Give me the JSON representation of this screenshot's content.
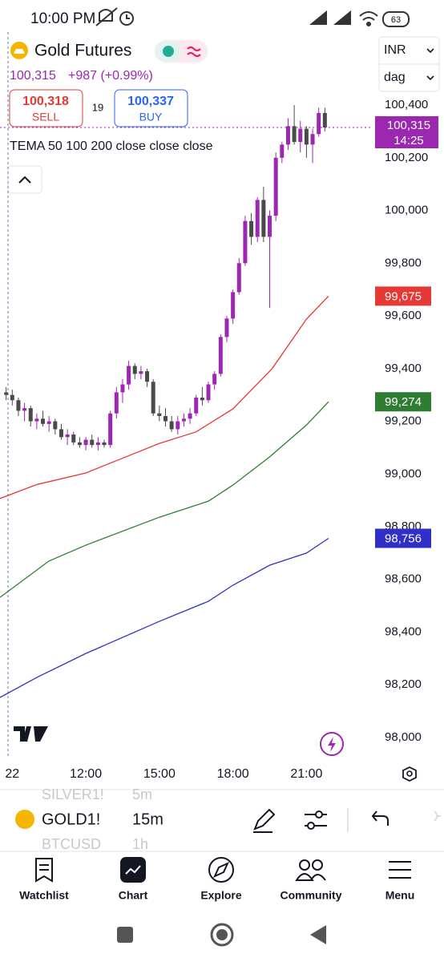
{
  "status_bar": {
    "time": "10:00 PM",
    "battery": "63"
  },
  "header": {
    "symbol_name": "Gold Futures",
    "price": "100,315",
    "change": "+987 (+0.99%)",
    "sell_price": "100,318",
    "sell_label": "SELL",
    "spread": "19",
    "buy_price": "100,337",
    "buy_label": "BUY",
    "currency": "INR",
    "interval": "dag"
  },
  "indicator_label": "TEMA 50 100 200 close close close",
  "chart_data": {
    "type": "candlestick",
    "up_color": "#9c27b0",
    "down_color": "#4a4a4a",
    "grid": false,
    "xlim": [
      8.5,
      23.7
    ],
    "ylim": [
      97924,
      100677
    ],
    "xticks": [
      {
        "value": 9,
        "label": "22"
      },
      {
        "value": 12,
        "label": "12:00"
      },
      {
        "value": 15,
        "label": "15:00"
      },
      {
        "value": 18,
        "label": "18:00"
      },
      {
        "value": 21,
        "label": "21:00"
      }
    ],
    "yticks": [
      {
        "value": 98000,
        "label": "98,000"
      },
      {
        "value": 98200,
        "label": "98,200"
      },
      {
        "value": 98400,
        "label": "98,400"
      },
      {
        "value": 98600,
        "label": "98,600"
      },
      {
        "value": 98800,
        "label": "98,800"
      },
      {
        "value": 99000,
        "label": "99,000"
      },
      {
        "value": 99200,
        "label": "99,200"
      },
      {
        "value": 99400,
        "label": "99,400"
      },
      {
        "value": 99600,
        "label": "99,600"
      },
      {
        "value": 99800,
        "label": "99,800"
      },
      {
        "value": 100000,
        "label": "100,000"
      },
      {
        "value": 100200,
        "label": "100,200"
      },
      {
        "value": 100400,
        "label": "100,400"
      }
    ],
    "last_price": 100315,
    "last_price_label": "100,315",
    "countdown": "14:25",
    "last_price_color": "#9c27b0",
    "candles": [
      {
        "x": 8.75,
        "o": 99310,
        "h": 99330,
        "l": 99280,
        "c": 99300
      },
      {
        "x": 9,
        "o": 99300,
        "h": 99320,
        "l": 99260,
        "c": 99280
      },
      {
        "x": 9.25,
        "o": 99280,
        "h": 99290,
        "l": 99220,
        "c": 99240
      },
      {
        "x": 9.5,
        "o": 99240,
        "h": 99270,
        "l": 99200,
        "c": 99250
      },
      {
        "x": 9.75,
        "o": 99250,
        "h": 99260,
        "l": 99180,
        "c": 99200
      },
      {
        "x": 10,
        "o": 99200,
        "h": 99230,
        "l": 99170,
        "c": 99210
      },
      {
        "x": 10.25,
        "o": 99210,
        "h": 99240,
        "l": 99180,
        "c": 99190
      },
      {
        "x": 10.5,
        "o": 99190,
        "h": 99220,
        "l": 99160,
        "c": 99200
      },
      {
        "x": 10.75,
        "o": 99200,
        "h": 99210,
        "l": 99150,
        "c": 99170
      },
      {
        "x": 11,
        "o": 99170,
        "h": 99190,
        "l": 99130,
        "c": 99140
      },
      {
        "x": 11.25,
        "o": 99140,
        "h": 99170,
        "l": 99110,
        "c": 99150
      },
      {
        "x": 11.5,
        "o": 99150,
        "h": 99160,
        "l": 99110,
        "c": 99120
      },
      {
        "x": 11.75,
        "o": 99120,
        "h": 99140,
        "l": 99100,
        "c": 99110
      },
      {
        "x": 12,
        "o": 99110,
        "h": 99140,
        "l": 99090,
        "c": 99130
      },
      {
        "x": 12.25,
        "o": 99130,
        "h": 99150,
        "l": 99100,
        "c": 99110
      },
      {
        "x": 12.5,
        "o": 99110,
        "h": 99140,
        "l": 99090,
        "c": 99120
      },
      {
        "x": 12.75,
        "o": 99120,
        "h": 99130,
        "l": 99100,
        "c": 99110
      },
      {
        "x": 13,
        "o": 99110,
        "h": 99240,
        "l": 99100,
        "c": 99230
      },
      {
        "x": 13.25,
        "o": 99230,
        "h": 99330,
        "l": 99210,
        "c": 99310
      },
      {
        "x": 13.5,
        "o": 99310,
        "h": 99360,
        "l": 99270,
        "c": 99340
      },
      {
        "x": 13.75,
        "o": 99340,
        "h": 99430,
        "l": 99320,
        "c": 99410
      },
      {
        "x": 14,
        "o": 99410,
        "h": 99420,
        "l": 99360,
        "c": 99380
      },
      {
        "x": 14.25,
        "o": 99380,
        "h": 99410,
        "l": 99360,
        "c": 99390
      },
      {
        "x": 14.5,
        "o": 99390,
        "h": 99400,
        "l": 99330,
        "c": 99350
      },
      {
        "x": 14.75,
        "o": 99350,
        "h": 99360,
        "l": 99220,
        "c": 99230
      },
      {
        "x": 15,
        "o": 99230,
        "h": 99260,
        "l": 99200,
        "c": 99220
      },
      {
        "x": 15.25,
        "o": 99220,
        "h": 99250,
        "l": 99180,
        "c": 99200
      },
      {
        "x": 15.5,
        "o": 99200,
        "h": 99220,
        "l": 99160,
        "c": 99170
      },
      {
        "x": 15.75,
        "o": 99170,
        "h": 99220,
        "l": 99150,
        "c": 99200
      },
      {
        "x": 16,
        "o": 99200,
        "h": 99230,
        "l": 99180,
        "c": 99210
      },
      {
        "x": 16.25,
        "o": 99210,
        "h": 99250,
        "l": 99190,
        "c": 99230
      },
      {
        "x": 16.5,
        "o": 99230,
        "h": 99300,
        "l": 99220,
        "c": 99290
      },
      {
        "x": 16.75,
        "o": 99290,
        "h": 99330,
        "l": 99260,
        "c": 99280
      },
      {
        "x": 17,
        "o": 99280,
        "h": 99350,
        "l": 99270,
        "c": 99340
      },
      {
        "x": 17.25,
        "o": 99340,
        "h": 99390,
        "l": 99320,
        "c": 99380
      },
      {
        "x": 17.5,
        "o": 99380,
        "h": 99530,
        "l": 99370,
        "c": 99520
      },
      {
        "x": 17.75,
        "o": 99520,
        "h": 99600,
        "l": 99500,
        "c": 99590
      },
      {
        "x": 18,
        "o": 99590,
        "h": 99700,
        "l": 99570,
        "c": 99690
      },
      {
        "x": 18.25,
        "o": 99690,
        "h": 99820,
        "l": 99680,
        "c": 99800
      },
      {
        "x": 18.5,
        "o": 99800,
        "h": 99980,
        "l": 99790,
        "c": 99960
      },
      {
        "x": 18.75,
        "o": 99960,
        "h": 99990,
        "l": 99870,
        "c": 99900
      },
      {
        "x": 19,
        "o": 99900,
        "h": 100050,
        "l": 99880,
        "c": 100040
      },
      {
        "x": 19.25,
        "o": 100040,
        "h": 100090,
        "l": 99880,
        "c": 99900
      },
      {
        "x": 19.5,
        "o": 99900,
        "h": 100000,
        "l": 99630,
        "c": 99980
      },
      {
        "x": 19.75,
        "o": 99980,
        "h": 100220,
        "l": 99960,
        "c": 100200
      },
      {
        "x": 20,
        "o": 100200,
        "h": 100260,
        "l": 100180,
        "c": 100250
      },
      {
        "x": 20.25,
        "o": 100250,
        "h": 100350,
        "l": 100230,
        "c": 100320
      },
      {
        "x": 20.5,
        "o": 100320,
        "h": 100400,
        "l": 100250,
        "c": 100260
      },
      {
        "x": 20.75,
        "o": 100260,
        "h": 100340,
        "l": 100220,
        "c": 100310
      },
      {
        "x": 21,
        "o": 100310,
        "h": 100320,
        "l": 100200,
        "c": 100250
      },
      {
        "x": 21.25,
        "o": 100250,
        "h": 100310,
        "l": 100180,
        "c": 100290
      },
      {
        "x": 21.5,
        "o": 100290,
        "h": 100390,
        "l": 100280,
        "c": 100370
      },
      {
        "x": 21.75,
        "o": 100370,
        "h": 100390,
        "l": 100300,
        "c": 100315
      }
    ],
    "series": [
      {
        "color": "#e53935",
        "end_label": "99,675",
        "x": [
          8.5,
          10,
          12,
          13.5,
          15,
          16.5,
          18,
          19.6,
          21,
          21.9
        ],
        "values": [
          98907,
          98960,
          99004,
          99060,
          99116,
          99160,
          99247,
          99400,
          99588,
          99675
        ]
      },
      {
        "color": "#2e7d32",
        "end_label": "99,274",
        "x": [
          8.5,
          10.5,
          12,
          15,
          17,
          18,
          19.5,
          21,
          21.9
        ],
        "values": [
          98532,
          98670,
          98730,
          98836,
          98897,
          98958,
          99065,
          99186,
          99274
        ]
      },
      {
        "color": "#3030c8",
        "end_label": "98,756",
        "x": [
          8.5,
          10,
          12,
          15,
          17,
          18,
          19.5,
          21,
          21.9
        ],
        "values": [
          98152,
          98228,
          98319,
          98441,
          98517,
          98578,
          98654,
          98700,
          98756
        ]
      }
    ]
  },
  "symbol_bar": {
    "prev_symbol": "SILVER1!",
    "prev_interval": "5m",
    "symbol": "GOLD1!",
    "interval": "15m",
    "next_symbol": "BTCUSD",
    "next_interval": "1h"
  },
  "nav": [
    "Watchlist",
    "Chart",
    "Explore",
    "Community",
    "Menu"
  ]
}
